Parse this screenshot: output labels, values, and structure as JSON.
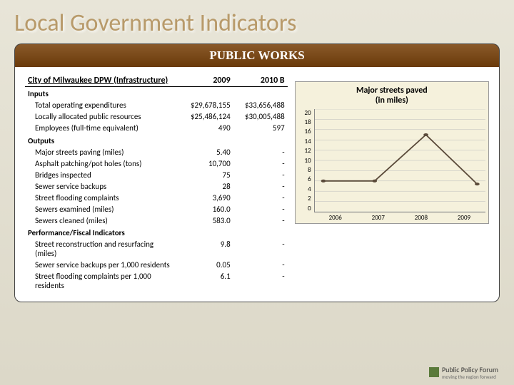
{
  "title": "Local Government Indicators",
  "banner": "PUBLIC WORKS",
  "table": {
    "header": {
      "c0": "City of Milwaukee DPW (Infrastructure)",
      "c1": "2009",
      "c2": "2010 B"
    },
    "sections": [
      {
        "label": "Inputs",
        "rows": [
          {
            "label": "Total operating expenditures",
            "v1": "$29,678,155",
            "v2": "$33,656,488"
          },
          {
            "label": "Locally allocated public resources",
            "v1": "$25,486,124",
            "v2": "$30,005,488"
          },
          {
            "label": "Employees (full-time equivalent)",
            "v1": "490",
            "v2": "597"
          }
        ]
      },
      {
        "label": "Outputs",
        "rows": [
          {
            "label": "Major streets paving (miles)",
            "v1": "5.40",
            "v2": "-"
          },
          {
            "label": "Asphalt patching/pot holes (tons)",
            "v1": "10,700",
            "v2": "-"
          },
          {
            "label": "Bridges inspected",
            "v1": "75",
            "v2": "-"
          },
          {
            "label": "Sewer service backups",
            "v1": "28",
            "v2": "-"
          },
          {
            "label": "Street flooding complaints",
            "v1": "3,690",
            "v2": "-"
          },
          {
            "label": "Sewers examined (miles)",
            "v1": "160.0",
            "v2": "-"
          },
          {
            "label": "Sewers cleaned (miles)",
            "v1": "583.0",
            "v2": "-"
          }
        ]
      },
      {
        "label": "Performance/Fiscal Indicators",
        "rows": [
          {
            "label": "Street reconstruction and resurfacing (miles)",
            "v1": "9.8",
            "v2": "-"
          },
          {
            "label": "Sewer service backups per 1,000 residents",
            "v1": "0.05",
            "v2": "-"
          },
          {
            "label": "Street flooding complaints per 1,000 residents",
            "v1": "6.1",
            "v2": "-"
          }
        ]
      }
    ]
  },
  "chart": {
    "type": "line",
    "title_line1": "Major streets paved",
    "title_line2": "(in miles)",
    "title_fontsize": 12,
    "background_color": "#f5f1dc",
    "grid_color": "#bbbbbb",
    "line_color": "#5a4a3a",
    "line_width": 1.8,
    "marker_size": 3,
    "ylim": [
      0,
      20
    ],
    "yticks": [
      "20",
      "18",
      "16",
      "14",
      "12",
      "10",
      "8",
      "6",
      "4",
      "2",
      "0"
    ],
    "xcats": [
      "2006",
      "2007",
      "2008",
      "2009"
    ],
    "values": [
      6,
      6,
      15,
      5.4
    ]
  },
  "footer": {
    "brand": "Public Policy Forum",
    "tagline": "moving the region forward"
  }
}
